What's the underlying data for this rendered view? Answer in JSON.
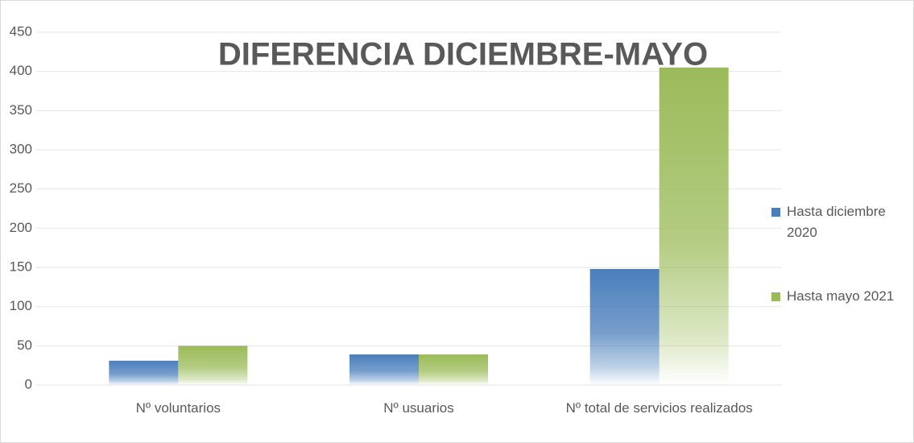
{
  "chart_data": {
    "type": "bar",
    "title": "DIFERENCIA DICIEMBRE-MAYO",
    "categories": [
      "Nº voluntarios",
      "Nº usuarios",
      "Nº total de servicios realizados"
    ],
    "series": [
      {
        "name": "Hasta diciembre 2020",
        "color": "#4a7ebb",
        "values": [
          31,
          39,
          148
        ]
      },
      {
        "name": "Hasta mayo 2021",
        "color": "#9bbb59",
        "values": [
          50,
          39,
          405
        ]
      }
    ],
    "ylim": [
      0,
      450
    ],
    "yticks": [
      0,
      50,
      100,
      150,
      200,
      250,
      300,
      350,
      400,
      450
    ],
    "grid": true,
    "legend": "right"
  }
}
